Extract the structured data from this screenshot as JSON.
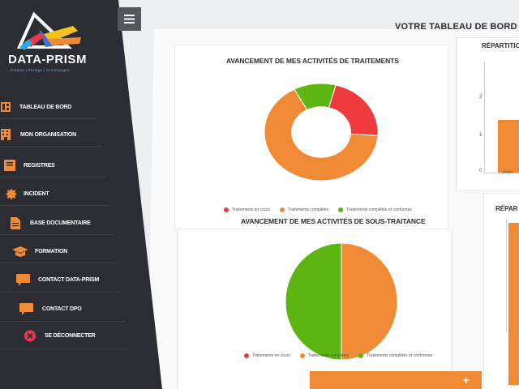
{
  "app": {
    "logo_text": "DATA-PRISM",
    "logo_tagline": "Analyse | Protège | Accompagne"
  },
  "colors": {
    "sidebar_bg": "#2b2d33",
    "accent_orange": "#f18a34",
    "red": "#ef3b3e",
    "green": "#5cb510",
    "danger_icon": "#e8384f"
  },
  "sidebar": {
    "items": [
      {
        "label": "TABLEAU DE BORD",
        "icon": "dashboard-icon"
      },
      {
        "label": "MON ORGANISATION",
        "icon": "building-icon"
      },
      {
        "label": "REGISTRES",
        "icon": "book-icon"
      },
      {
        "label": "INCIDENT",
        "icon": "gear-badge-icon"
      },
      {
        "label": "BASE DOCUMENTAIRE",
        "icon": "document-icon"
      },
      {
        "label": "FORMATION",
        "icon": "graduation-cap-icon"
      },
      {
        "label": "CONTACT DATA-PRISM",
        "icon": "chat-icon"
      },
      {
        "label": "CONTACT DPO",
        "icon": "chat-icon"
      },
      {
        "label": "SE DÉCONNECTER",
        "icon": "close-circle-icon"
      }
    ]
  },
  "header": {
    "page_title": "VOTRE TABLEAU DE BORD",
    "menu_icon": "hamburger-icon"
  },
  "charts": {
    "donut1": {
      "title": "AVANCEMENT DE MES ACTIVITÉS DE TRAITEMENTS"
    },
    "donut2": {
      "title": "AVANCEMENT DE MES ACTIVITÉS DE SOUS-TRAITANCE"
    },
    "right1": {
      "title": "RÉPARTITION"
    },
    "right2": {
      "title": "RÉPAR"
    }
  },
  "legend": [
    {
      "label": "Traitements en cours",
      "color": "#ef3b3e"
    },
    {
      "label": "Traitements complétés",
      "color": "#f18a34"
    },
    {
      "label": "Traitements complétés et conformes",
      "color": "#5cb510"
    }
  ],
  "chart_data": [
    {
      "type": "pie",
      "title": "AVANCEMENT DE MES ACTIVITÉS DE TRAITEMENTS",
      "labels": [
        "Traitements en cours",
        "Traitements complétés",
        "Traitements complétés et conformes"
      ],
      "values": [
        22,
        66,
        12
      ],
      "colors": [
        "#ef3b3e",
        "#f18a34",
        "#5cb510"
      ]
    },
    {
      "type": "pie",
      "title": "AVANCEMENT DE MES ACTIVITÉS DE SOUS-TRAITANCE",
      "labels": [
        "Traitements en cours",
        "Traitements complétés",
        "Traitements complétés et conformes"
      ],
      "values": [
        0,
        50,
        50
      ],
      "colors": [
        "#ef3b3e",
        "#f18a34",
        "#5cb510"
      ]
    },
    {
      "type": "bar",
      "title": "RÉPARTITION",
      "categories": [
        "Activi"
      ],
      "values": [
        1
      ],
      "yticks": [
        "0",
        "1",
        "2"
      ],
      "ylim": [
        0,
        2.1
      ]
    }
  ]
}
